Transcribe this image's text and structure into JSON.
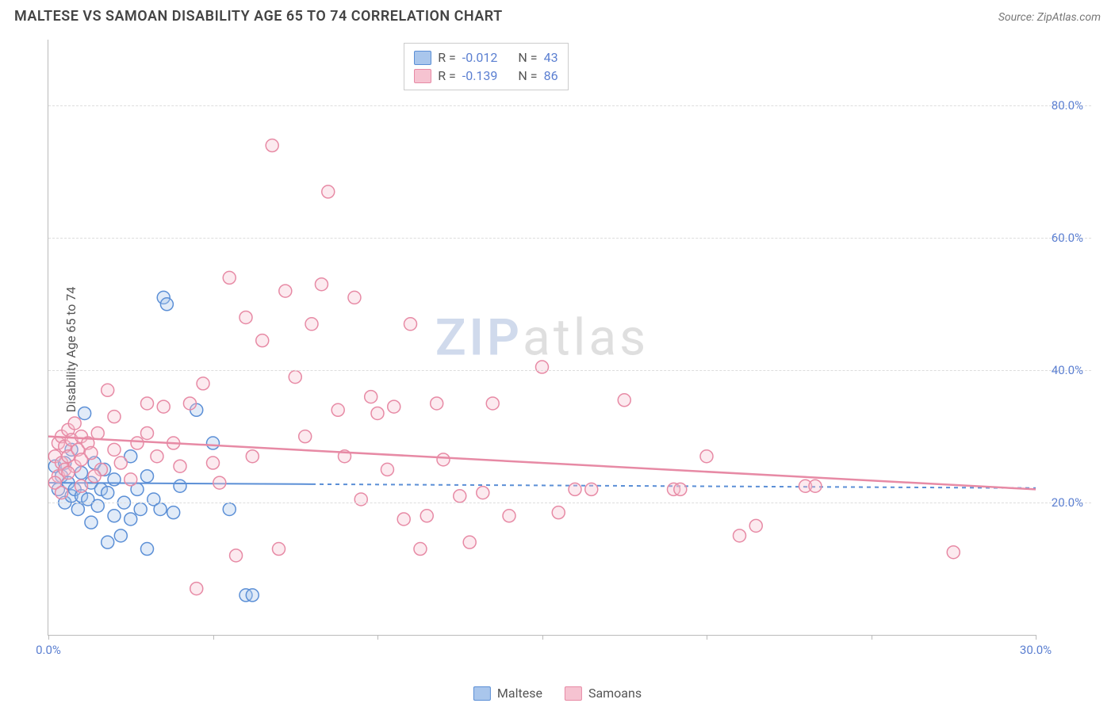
{
  "header": {
    "title": "MALTESE VS SAMOAN DISABILITY AGE 65 TO 74 CORRELATION CHART",
    "source": "Source: ZipAtlas.com"
  },
  "chart": {
    "type": "scatter",
    "ylabel": "Disability Age 65 to 74",
    "background_color": "#ffffff",
    "grid_color": "#dddddd",
    "axis_color": "#bbbbbb",
    "tick_label_color": "#5b7fd1",
    "tick_fontsize": 15,
    "ylabel_fontsize": 16,
    "xlim": [
      0,
      30
    ],
    "ylim": [
      0,
      90
    ],
    "yticks": [
      {
        "v": 20,
        "label": "20.0%"
      },
      {
        "v": 40,
        "label": "40.0%"
      },
      {
        "v": 60,
        "label": "60.0%"
      },
      {
        "v": 80,
        "label": "80.0%"
      }
    ],
    "xticks": [
      {
        "v": 0,
        "label": "0.0%"
      },
      {
        "v": 5,
        "label": ""
      },
      {
        "v": 10,
        "label": ""
      },
      {
        "v": 15,
        "label": ""
      },
      {
        "v": 20,
        "label": ""
      },
      {
        "v": 25,
        "label": ""
      },
      {
        "v": 30,
        "label": "30.0%"
      }
    ],
    "marker_radius": 8,
    "marker_stroke_width": 1.5,
    "marker_fill_opacity": 0.35,
    "series": [
      {
        "name": "Maltese",
        "color_stroke": "#5b8fd6",
        "color_fill": "#a9c6ec",
        "regression": {
          "y_at_xmin": 23.0,
          "y_at_xmax": 22.2,
          "solid_until_x": 8.0,
          "line_width": 2,
          "dash": "5,5"
        },
        "points": [
          [
            0.2,
            25.5
          ],
          [
            0.3,
            22.0
          ],
          [
            0.4,
            24.0
          ],
          [
            0.5,
            20.0
          ],
          [
            0.5,
            26.0
          ],
          [
            0.6,
            23.0
          ],
          [
            0.7,
            21.0
          ],
          [
            0.7,
            28.0
          ],
          [
            0.8,
            22.0
          ],
          [
            0.9,
            19.0
          ],
          [
            1.0,
            24.5
          ],
          [
            1.0,
            21.0
          ],
          [
            1.1,
            33.5
          ],
          [
            1.2,
            20.5
          ],
          [
            1.3,
            17.0
          ],
          [
            1.3,
            23.0
          ],
          [
            1.4,
            26.0
          ],
          [
            1.5,
            19.5
          ],
          [
            1.6,
            22.0
          ],
          [
            1.7,
            25.0
          ],
          [
            1.8,
            14.0
          ],
          [
            1.8,
            21.5
          ],
          [
            2.0,
            18.0
          ],
          [
            2.0,
            23.5
          ],
          [
            2.2,
            15.0
          ],
          [
            2.3,
            20.0
          ],
          [
            2.5,
            27.0
          ],
          [
            2.5,
            17.5
          ],
          [
            2.7,
            22.0
          ],
          [
            2.8,
            19.0
          ],
          [
            3.0,
            13.0
          ],
          [
            3.0,
            24.0
          ],
          [
            3.2,
            20.5
          ],
          [
            3.4,
            19.0
          ],
          [
            3.5,
            51.0
          ],
          [
            3.6,
            50.0
          ],
          [
            3.8,
            18.5
          ],
          [
            4.0,
            22.5
          ],
          [
            4.5,
            34.0
          ],
          [
            5.0,
            29.0
          ],
          [
            5.5,
            19.0
          ],
          [
            6.0,
            6.0
          ],
          [
            6.2,
            6.0
          ]
        ]
      },
      {
        "name": "Samoans",
        "color_stroke": "#e78aa5",
        "color_fill": "#f6c3d1",
        "regression": {
          "y_at_xmin": 30.0,
          "y_at_xmax": 22.0,
          "solid_until_x": 30.0,
          "line_width": 2.5,
          "dash": ""
        },
        "points": [
          [
            0.2,
            27.0
          ],
          [
            0.3,
            29.0
          ],
          [
            0.3,
            24.0
          ],
          [
            0.4,
            30.0
          ],
          [
            0.4,
            26.0
          ],
          [
            0.5,
            28.5
          ],
          [
            0.5,
            25.0
          ],
          [
            0.6,
            31.0
          ],
          [
            0.6,
            27.0
          ],
          [
            0.7,
            29.5
          ],
          [
            0.8,
            25.5
          ],
          [
            0.8,
            32.0
          ],
          [
            0.9,
            28.0
          ],
          [
            1.0,
            30.0
          ],
          [
            1.0,
            26.5
          ],
          [
            1.2,
            29.0
          ],
          [
            1.3,
            27.5
          ],
          [
            1.5,
            30.5
          ],
          [
            1.6,
            25.0
          ],
          [
            1.8,
            37.0
          ],
          [
            2.0,
            28.0
          ],
          [
            2.0,
            33.0
          ],
          [
            2.2,
            26.0
          ],
          [
            2.5,
            23.5
          ],
          [
            2.7,
            29.0
          ],
          [
            3.0,
            35.0
          ],
          [
            3.0,
            30.5
          ],
          [
            3.3,
            27.0
          ],
          [
            3.5,
            34.5
          ],
          [
            3.8,
            29.0
          ],
          [
            4.0,
            25.5
          ],
          [
            4.3,
            35.0
          ],
          [
            4.5,
            7.0
          ],
          [
            4.7,
            38.0
          ],
          [
            5.0,
            26.0
          ],
          [
            5.2,
            23.0
          ],
          [
            5.5,
            54.0
          ],
          [
            5.7,
            12.0
          ],
          [
            6.0,
            48.0
          ],
          [
            6.2,
            27.0
          ],
          [
            6.5,
            44.5
          ],
          [
            6.8,
            74.0
          ],
          [
            7.0,
            13.0
          ],
          [
            7.2,
            52.0
          ],
          [
            7.5,
            39.0
          ],
          [
            7.8,
            30.0
          ],
          [
            8.0,
            47.0
          ],
          [
            8.3,
            53.0
          ],
          [
            8.5,
            67.0
          ],
          [
            8.8,
            34.0
          ],
          [
            9.0,
            27.0
          ],
          [
            9.3,
            51.0
          ],
          [
            9.5,
            20.5
          ],
          [
            9.8,
            36.0
          ],
          [
            10.0,
            33.5
          ],
          [
            10.3,
            25.0
          ],
          [
            10.5,
            34.5
          ],
          [
            10.8,
            17.5
          ],
          [
            11.0,
            47.0
          ],
          [
            11.3,
            13.0
          ],
          [
            11.5,
            18.0
          ],
          [
            11.8,
            35.0
          ],
          [
            12.0,
            26.5
          ],
          [
            12.5,
            21.0
          ],
          [
            12.8,
            14.0
          ],
          [
            13.2,
            21.5
          ],
          [
            13.5,
            35.0
          ],
          [
            14.0,
            18.0
          ],
          [
            15.0,
            40.5
          ],
          [
            15.5,
            18.5
          ],
          [
            16.0,
            22.0
          ],
          [
            16.5,
            22.0
          ],
          [
            17.5,
            35.5
          ],
          [
            19.0,
            22.0
          ],
          [
            19.2,
            22.0
          ],
          [
            20.0,
            27.0
          ],
          [
            21.0,
            15.0
          ],
          [
            21.5,
            16.5
          ],
          [
            23.0,
            22.5
          ],
          [
            23.3,
            22.5
          ],
          [
            27.5,
            12.5
          ],
          [
            0.2,
            23.0
          ],
          [
            0.4,
            21.5
          ],
          [
            0.6,
            24.5
          ],
          [
            1.0,
            22.5
          ],
          [
            1.4,
            24.0
          ]
        ]
      }
    ],
    "stats_box": {
      "rows": [
        {
          "swatch_stroke": "#5b8fd6",
          "swatch_fill": "#a9c6ec",
          "r_label": "R =",
          "r_val": "-0.012",
          "n_label": "N =",
          "n_val": "43"
        },
        {
          "swatch_stroke": "#e78aa5",
          "swatch_fill": "#f6c3d1",
          "r_label": "R =",
          "r_val": "-0.139",
          "n_label": "N =",
          "n_val": "86"
        }
      ]
    },
    "legend": [
      {
        "swatch_stroke": "#5b8fd6",
        "swatch_fill": "#a9c6ec",
        "label": "Maltese"
      },
      {
        "swatch_stroke": "#e78aa5",
        "swatch_fill": "#f6c3d1",
        "label": "Samoans"
      }
    ],
    "watermark": {
      "zip": "ZIP",
      "atlas": "atlas"
    }
  }
}
